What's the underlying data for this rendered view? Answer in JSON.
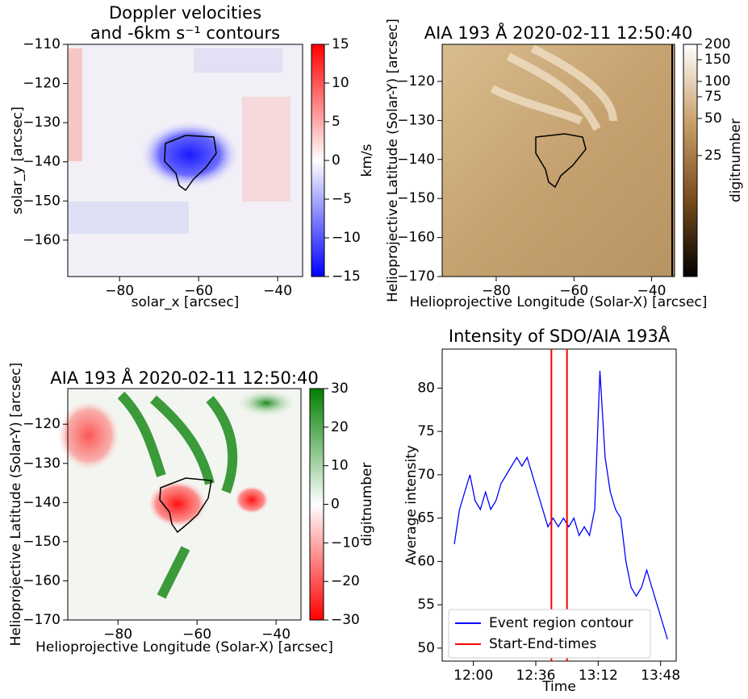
{
  "chart_data": [
    {
      "type": "heatmap",
      "title": [
        "Doppler velocities",
        "and -6km s⁻¹ contours"
      ],
      "xlabel": "solar_x [arcsec]",
      "ylabel": "solar_y [arcsec]",
      "xlim": [
        -93.1,
        -33.7
      ],
      "ylim": [
        -169.3,
        -110
      ],
      "xticks": [
        {
          "value": -80,
          "label": "−80"
        },
        {
          "value": -60,
          "label": "−60"
        },
        {
          "value": -40,
          "label": "−40"
        }
      ],
      "yticks": [
        {
          "value": -160,
          "label": "−160"
        },
        {
          "value": -150,
          "label": "−150"
        },
        {
          "value": -140,
          "label": "−140"
        },
        {
          "value": -130,
          "label": "−130"
        },
        {
          "value": -120,
          "label": "−120"
        },
        {
          "value": -110,
          "label": "−110"
        }
      ],
      "colorbar": {
        "label": "km/s",
        "lim": [
          -15,
          15
        ],
        "log": false,
        "colors": [
          "#0000ff",
          "#ffffff",
          "#ff0000"
        ],
        "ticks": [
          {
            "value": -15,
            "label": "−15"
          },
          {
            "value": -10,
            "label": "−10"
          },
          {
            "value": -5,
            "label": "−5"
          },
          0,
          5,
          10,
          15
        ]
      }
    },
    {
      "type": "heatmap",
      "title": "AIA 193 Å 2020-02-11 12:50:40",
      "xlabel": "Helioprojective Longitude (Solar-X) [arcsec]",
      "ylabel": "Helioprojective Latitude (Solar-Y) [arcsec]",
      "xlim": [
        -93.9,
        -34.1
      ],
      "ylim": [
        -170,
        -110.5
      ],
      "xticks": [
        {
          "value": -80,
          "label": "−80"
        },
        {
          "value": -60,
          "label": "−60"
        },
        {
          "value": -40,
          "label": "−40"
        }
      ],
      "yticks": [
        {
          "value": -170,
          "label": "−170"
        },
        {
          "value": -160,
          "label": "−160"
        },
        {
          "value": -150,
          "label": "−150"
        },
        {
          "value": -140,
          "label": "−140"
        },
        {
          "value": -130,
          "label": "−130"
        },
        {
          "value": -120,
          "label": "−120"
        }
      ],
      "colorbar": {
        "label": "digitnumber",
        "lim": [
          2.6,
          200
        ],
        "log": true,
        "colors": [
          "#000000",
          "#7a4d1c",
          "#c9a06a",
          "#ffffff"
        ],
        "ticks": [
          25,
          50,
          75,
          100,
          150,
          200
        ]
      }
    },
    {
      "type": "heatmap",
      "title": "AIA 193 Å 2020-02-11 12:50:40",
      "xlabel": "Helioprojective Longitude (Solar-X) [arcsec]",
      "ylabel": "Helioprojective Latitude (Solar-Y) [arcsec]",
      "xlim": [
        -92.7,
        -33.7
      ],
      "ylim": [
        -170,
        -110.9
      ],
      "xticks": [
        {
          "value": -80,
          "label": "−80"
        },
        {
          "value": -60,
          "label": "−60"
        },
        {
          "value": -40,
          "label": "−40"
        }
      ],
      "yticks": [
        {
          "value": -170,
          "label": "−170"
        },
        {
          "value": -160,
          "label": "−160"
        },
        {
          "value": -150,
          "label": "−150"
        },
        {
          "value": -140,
          "label": "−140"
        },
        {
          "value": -130,
          "label": "−130"
        },
        {
          "value": -120,
          "label": "−120"
        }
      ],
      "colorbar": {
        "label": "digitnumber",
        "lim": [
          -30,
          30
        ],
        "log": false,
        "colors": [
          "#ff0000",
          "#ffffff",
          "#008000"
        ],
        "ticks": [
          {
            "value": -30,
            "label": "−30"
          },
          {
            "value": -20,
            "label": "−20"
          },
          {
            "value": -10,
            "label": "−10"
          },
          0,
          10,
          20,
          30
        ]
      }
    },
    {
      "type": "line",
      "title": "Intensity of SDO/AIA 193Å",
      "xlabel": "Time",
      "ylabel": "Average intensity",
      "xlim": [
        "11:42",
        "13:57"
      ],
      "ylim": [
        48.5,
        84.5
      ],
      "xticks": [
        "12:00",
        "12:36",
        "13:12",
        "13:48"
      ],
      "yticks": [
        50,
        55,
        60,
        65,
        70,
        75,
        80
      ],
      "legend": "lower left",
      "series": [
        {
          "name": "Event region contour",
          "color": "#0000ff",
          "x": [
            "11:49",
            "11:52",
            "11:55",
            "11:58",
            "12:01",
            "12:04",
            "12:07",
            "12:10",
            "12:13",
            "12:16",
            "12:19",
            "12:22",
            "12:25",
            "12:28",
            "12:31",
            "12:34",
            "12:37",
            "12:40",
            "12:43",
            "12:46",
            "12:49",
            "12:52",
            "12:55",
            "12:58",
            "13:01",
            "13:04",
            "13:07",
            "13:10",
            "13:13",
            "13:16",
            "13:19",
            "13:22",
            "13:25",
            "13:28",
            "13:31",
            "13:34",
            "13:37",
            "13:40",
            "13:43",
            "13:46",
            "13:49",
            "13:52"
          ],
          "values": [
            62,
            66,
            68,
            70,
            67,
            66,
            68,
            66,
            67,
            69,
            70,
            71,
            72,
            71,
            72,
            70,
            68,
            66,
            64,
            65,
            64,
            65,
            64,
            65,
            63,
            64,
            63,
            66,
            82,
            72,
            68,
            66,
            65,
            60,
            57,
            56,
            57,
            59,
            57,
            55,
            53,
            51
          ]
        }
      ],
      "vlines": {
        "name": "Start-End-times",
        "color": "#ff0000",
        "x": [
          "12:45",
          "12:54"
        ]
      }
    }
  ]
}
